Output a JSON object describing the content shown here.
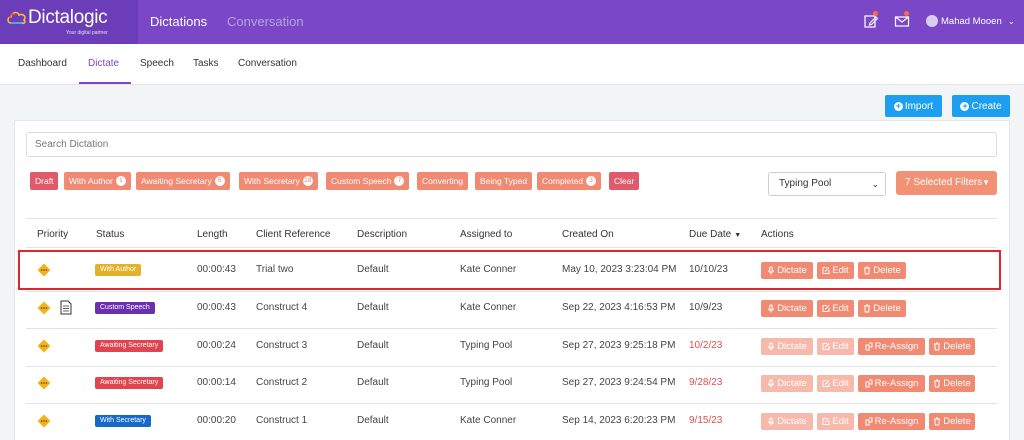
{
  "header": {
    "logo_text": "Dictalogic",
    "logo_tagline": "Your digital partner",
    "nav": [
      {
        "label": "Dictations",
        "active": true
      },
      {
        "label": "Conversation",
        "active": false
      }
    ],
    "user_name": "Mahad Mooen",
    "accent_color": "#7a48c6"
  },
  "subnav": {
    "items": [
      "Dashboard",
      "Dictate",
      "Speech",
      "Tasks",
      "Conversation"
    ],
    "active": "Dictate"
  },
  "toolbar": {
    "import_label": "Import",
    "create_label": "Create"
  },
  "search": {
    "placeholder": "Search Dictation"
  },
  "status_filters": [
    {
      "label": "Draft",
      "count": null,
      "color": "#e05a6a"
    },
    {
      "label": "With Author",
      "count": "1",
      "color": "#f08a73"
    },
    {
      "label": "Awaiting Secretary",
      "count": "5",
      "color": "#f08a73"
    },
    {
      "label": "With Secretary",
      "count": "18",
      "color": "#f08a73"
    },
    {
      "label": "Custom Speech",
      "count": "7",
      "color": "#f08a73"
    },
    {
      "label": "Converting",
      "count": null,
      "color": "#f08a73"
    },
    {
      "label": "Being Typed",
      "count": null,
      "color": "#f08a73"
    },
    {
      "label": "Completed",
      "count": "3",
      "color": "#f08a73"
    },
    {
      "label": "Clear",
      "count": null,
      "color": "#e05a6a"
    }
  ],
  "pool_select": {
    "value": "Typing Pool"
  },
  "filters_button": {
    "label": "7 Selected Filters"
  },
  "table": {
    "columns": [
      "Priority",
      "Status",
      "Length",
      "Client Reference",
      "Description",
      "Assigned to",
      "Created On",
      "Due Date",
      "Actions"
    ],
    "rows": [
      {
        "status": "With Author",
        "status_color": "#e3b12a",
        "length": "00:00:43",
        "client_reference": "Trial two",
        "description": "Default",
        "assigned_to": "Kate Conner",
        "created_on": "May 10, 2023 3:23:04 PM",
        "due_date": "10/10/23",
        "due_overdue": false,
        "has_doc": false,
        "actions": [
          "Dictate",
          "Edit",
          "Delete"
        ],
        "reassign": false
      },
      {
        "status": "Custom Speech",
        "status_color": "#6b2fb0",
        "length": "00:00:43",
        "client_reference": "Construct 4",
        "description": "Default",
        "assigned_to": "Kate Conner",
        "created_on": "Sep 22, 2023 4:16:53 PM",
        "due_date": "10/9/23",
        "due_overdue": false,
        "has_doc": true,
        "actions": [
          "Dictate",
          "Edit",
          "Delete"
        ],
        "reassign": false
      },
      {
        "status": "Awaiting Secretary",
        "status_color": "#e0444e",
        "length": "00:00:24",
        "client_reference": "Construct 3",
        "description": "Default",
        "assigned_to": "Typing Pool",
        "created_on": "Sep 27, 2023 9:25:18 PM",
        "due_date": "10/2/23",
        "due_overdue": true,
        "has_doc": false,
        "actions": [
          "Dictate",
          "Edit",
          "Re-Assign",
          "Delete"
        ],
        "reassign": true
      },
      {
        "status": "Awaiting Secretary",
        "status_color": "#e0444e",
        "length": "00:00:14",
        "client_reference": "Construct 2",
        "description": "Default",
        "assigned_to": "Typing Pool",
        "created_on": "Sep 27, 2023 9:24:54 PM",
        "due_date": "9/28/23",
        "due_overdue": true,
        "has_doc": false,
        "actions": [
          "Dictate",
          "Edit",
          "Re-Assign",
          "Delete"
        ],
        "reassign": true
      },
      {
        "status": "With Secretary",
        "status_color": "#1769c7",
        "length": "00:00:20",
        "client_reference": "Construct 1",
        "description": "Default",
        "assigned_to": "Kate Conner",
        "created_on": "Sep 14, 2023 6:20:23 PM",
        "due_date": "9/15/23",
        "due_overdue": true,
        "has_doc": false,
        "actions": [
          "Dictate",
          "Edit",
          "Re-Assign",
          "Delete"
        ],
        "reassign": true
      }
    ]
  }
}
